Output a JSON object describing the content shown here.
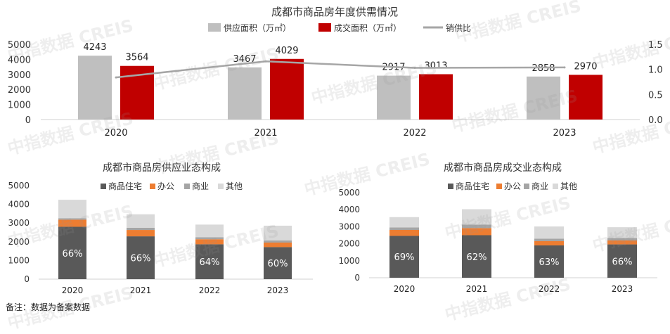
{
  "footnote": "备注：数据为备案数据",
  "watermark": "中指数据 CREIS",
  "colors": {
    "supply": "#bfbfbf",
    "deal": "#c00000",
    "ratio": "#a6a6a6",
    "residential": "#595959",
    "office": "#ed7d31",
    "commercial": "#a5a5a5",
    "other": "#d9d9d9",
    "share_text": "#ffffff"
  },
  "chart_data": [
    {
      "type": "bar",
      "title": "成都市商品房年度供需情况",
      "categories": [
        "2020",
        "2021",
        "2022",
        "2023"
      ],
      "series": [
        {
          "name": "供应面积（万㎡）",
          "values": [
            4243,
            3467,
            2917,
            2858
          ],
          "color": "#bfbfbf"
        },
        {
          "name": "成交面积（万㎡）",
          "values": [
            3564,
            4029,
            3013,
            2970
          ],
          "color": "#c00000"
        },
        {
          "name": "销供比",
          "type": "line",
          "axis": "right",
          "values": [
            0.84,
            1.16,
            1.03,
            1.04
          ],
          "color": "#a6a6a6"
        }
      ],
      "y_ticks": [
        "5000",
        "4000",
        "3000",
        "2000",
        "1000",
        "0"
      ],
      "y2_ticks": [
        "1.5",
        "1.0",
        "0.5",
        "0.0"
      ],
      "ylim": [
        0,
        5000
      ],
      "y2lim": [
        0,
        1.5
      ],
      "legend_position": "top",
      "grid": false
    },
    {
      "type": "bar",
      "stacked": true,
      "title": "成都市商品房供应业态构成",
      "categories": [
        "2020",
        "2021",
        "2022",
        "2023"
      ],
      "series": [
        {
          "name": "商品住宅",
          "values": [
            2800,
            2290,
            1865,
            1715
          ],
          "color": "#595959"
        },
        {
          "name": "办公",
          "values": [
            380,
            340,
            270,
            240
          ],
          "color": "#ed7d31"
        },
        {
          "name": "商业",
          "values": [
            80,
            120,
            110,
            120
          ],
          "color": "#a5a5a5"
        },
        {
          "name": "其他",
          "values": [
            983,
            717,
            672,
            783
          ],
          "color": "#d9d9d9"
        }
      ],
      "share_labels": [
        "66%",
        "66%",
        "64%",
        "60%"
      ],
      "y_ticks": [
        "5000",
        "4000",
        "3000",
        "2000",
        "1000",
        "0"
      ],
      "ylim": [
        0,
        5000
      ],
      "legend_position": "top",
      "grid": false
    },
    {
      "type": "bar",
      "stacked": true,
      "title": "成都市商品房成交业态构成",
      "categories": [
        "2020",
        "2021",
        "2022",
        "2023"
      ],
      "series": [
        {
          "name": "商品住宅",
          "values": [
            2460,
            2500,
            1900,
            1960
          ],
          "color": "#595959"
        },
        {
          "name": "办公",
          "values": [
            350,
            420,
            250,
            230
          ],
          "color": "#ed7d31"
        },
        {
          "name": "商业",
          "values": [
            150,
            200,
            150,
            150
          ],
          "color": "#a5a5a5"
        },
        {
          "name": "其他",
          "values": [
            604,
            909,
            713,
            630
          ],
          "color": "#d9d9d9"
        }
      ],
      "share_labels": [
        "69%",
        "62%",
        "63%",
        "66%"
      ],
      "y_ticks": [
        "5000",
        "4000",
        "3000",
        "2000",
        "1000",
        "0"
      ],
      "ylim": [
        0,
        5000
      ],
      "legend_position": "top",
      "grid": false
    }
  ]
}
